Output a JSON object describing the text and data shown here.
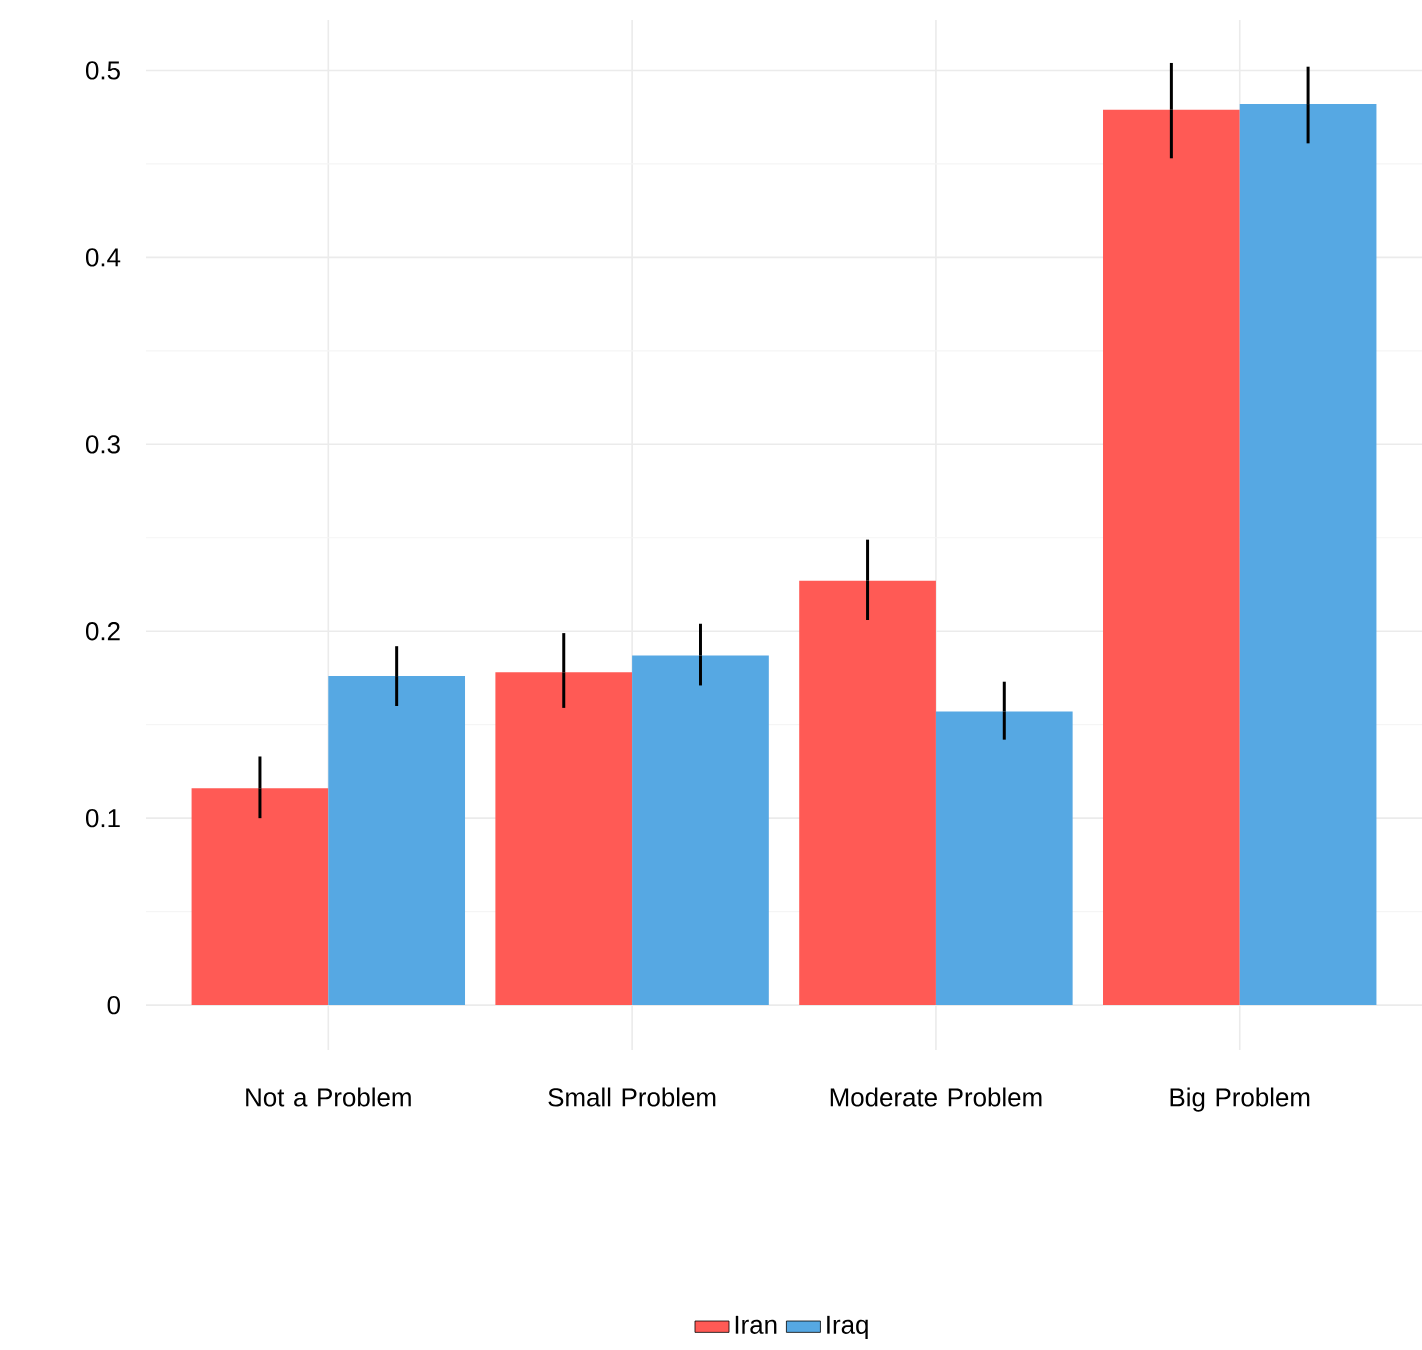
{
  "chart_data": {
    "type": "bar",
    "categories": [
      "Not a Problem",
      "Small Problem",
      "Moderate Problem",
      "Big Problem"
    ],
    "series": [
      {
        "name": "Iran",
        "color": "#ff5a55",
        "values": [
          0.116,
          0.178,
          0.227,
          0.479
        ],
        "errors": [
          [
            0.1,
            0.133
          ],
          [
            0.159,
            0.199
          ],
          [
            0.206,
            0.249
          ],
          [
            0.453,
            0.504
          ]
        ]
      },
      {
        "name": "Iraq",
        "color": "#56a8e3",
        "values": [
          0.176,
          0.187,
          0.157,
          0.482
        ],
        "errors": [
          [
            0.16,
            0.192
          ],
          [
            0.171,
            0.204
          ],
          [
            0.142,
            0.173
          ],
          [
            0.461,
            0.502
          ]
        ]
      }
    ],
    "ylim": [
      -0.024,
      0.527
    ],
    "yticks": [
      0,
      0.1,
      0.2,
      0.3,
      0.4,
      0.5
    ],
    "grid": true,
    "legend": "bottom"
  }
}
